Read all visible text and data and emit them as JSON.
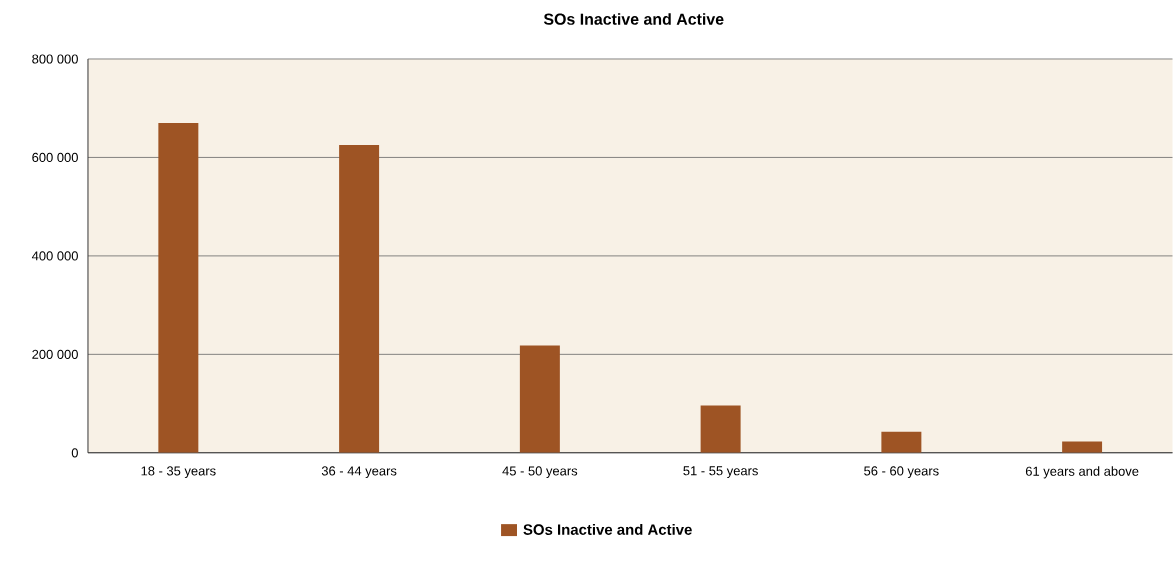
{
  "chart_data": {
    "type": "bar",
    "title": "SOs Inactive and Active",
    "categories": [
      "18 - 35 years",
      "36 - 44 years",
      "45 - 50 years",
      "51 - 55 years",
      "56 - 60 years",
      "61 years and above"
    ],
    "series": [
      {
        "name": "SOs Inactive and Active",
        "color": "#9e5424",
        "values": [
          670000,
          625000,
          218000,
          96000,
          43000,
          23000
        ]
      }
    ],
    "ylim": [
      0,
      800000
    ],
    "yticks": [
      0,
      {
        "value": 200000,
        "label": "200 000"
      },
      {
        "value": 400000,
        "label": "400 000"
      },
      {
        "value": 600000,
        "label": "600 000"
      },
      {
        "value": 800000,
        "label": "800 000"
      }
    ],
    "grid": "y",
    "legend": "bottom"
  }
}
